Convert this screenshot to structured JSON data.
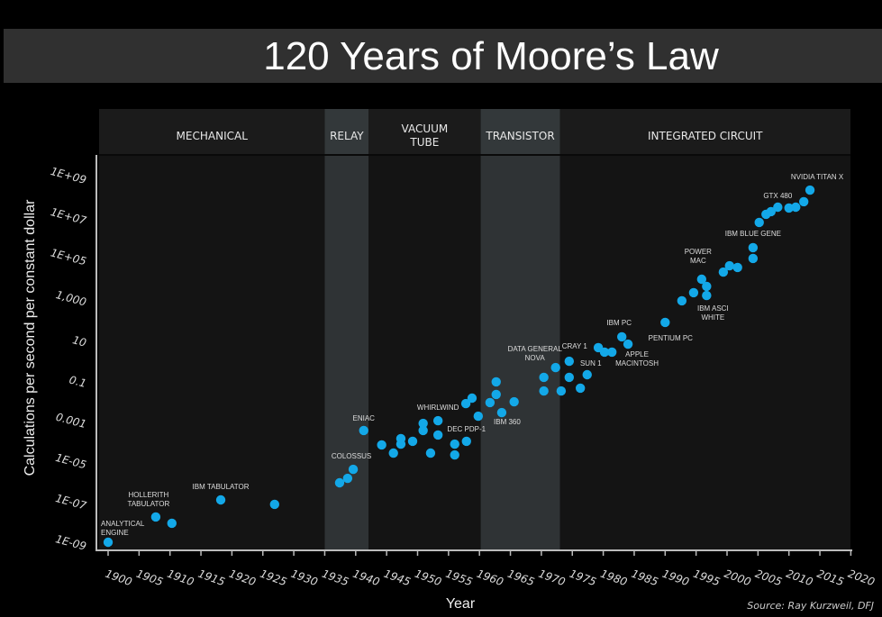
{
  "chart_data": {
    "type": "scatter",
    "title": "120 Years of Moore’s Law",
    "xlabel": "Year",
    "ylabel": "Calculations per second per constant dollar",
    "source": "Source: Ray Kurzweil, DFJ",
    "xlim": [
      1900,
      2020
    ],
    "ylim_log10": [
      -9,
      9
    ],
    "x_ticks": [
      "1900",
      "1905",
      "1910",
      "1915",
      "1920",
      "1925",
      "1930",
      "1935",
      "1940",
      "1945",
      "1950",
      "1955",
      "1960",
      "1965",
      "1970",
      "1975",
      "1980",
      "1985",
      "1990",
      "1995",
      "2000",
      "2005",
      "2010",
      "2015",
      "2020"
    ],
    "y_ticks": [
      {
        "label": "1E+09",
        "log10": 9
      },
      {
        "label": "1E+07",
        "log10": 7
      },
      {
        "label": "1E+05",
        "log10": 5
      },
      {
        "label": "1,000",
        "log10": 3
      },
      {
        "label": "10",
        "log10": 1
      },
      {
        "label": "0.1",
        "log10": -1
      },
      {
        "label": "0.001",
        "log10": -3
      },
      {
        "label": "1E-05",
        "log10": -5
      },
      {
        "label": "1E-07",
        "log10": -7
      },
      {
        "label": "1E-09",
        "log10": -9
      }
    ],
    "eras": [
      {
        "name": "MECHANICAL",
        "start": 1898.5,
        "end": 1935,
        "shaded": false
      },
      {
        "name": "RELAY",
        "start": 1935,
        "end": 1942.1,
        "shaded": true
      },
      {
        "name": "VACUUM TUBE",
        "start": 1942.1,
        "end": 1960.2,
        "shaded": false
      },
      {
        "name": "TRANSISTOR",
        "start": 1960.2,
        "end": 1973,
        "shaded": true
      },
      {
        "name": "INTEGRATED CIRCUIT",
        "start": 1973,
        "end": 2020,
        "shaded": false
      }
    ],
    "point_color": "#13a8e8",
    "points": [
      {
        "year": 1900,
        "log10": -9.0,
        "label": "ANALYTICAL ENGINE"
      },
      {
        "year": 1907.7,
        "log10": -7.76,
        "label": "HOLLERITH TABULATOR"
      },
      {
        "year": 1910.3,
        "log10": -8.07
      },
      {
        "year": 1918.2,
        "log10": -6.92,
        "label": "IBM TABULATOR"
      },
      {
        "year": 1926.9,
        "log10": -7.14
      },
      {
        "year": 1937.4,
        "log10": -6.08
      },
      {
        "year": 1938.7,
        "log10": -5.86
      },
      {
        "year": 1939.6,
        "log10": -5.42,
        "label": "COLOSSUS"
      },
      {
        "year": 1941.3,
        "log10": -3.51,
        "label": "ENIAC"
      },
      {
        "year": 1944.2,
        "log10": -4.22
      },
      {
        "year": 1946.1,
        "log10": -4.62
      },
      {
        "year": 1947.3,
        "log10": -3.91
      },
      {
        "year": 1947.3,
        "log10": -4.18
      },
      {
        "year": 1949.2,
        "log10": -4.04
      },
      {
        "year": 1950.9,
        "log10": -3.16
      },
      {
        "year": 1950.9,
        "log10": -3.51
      },
      {
        "year": 1952.1,
        "log10": -4.62
      },
      {
        "year": 1953.3,
        "log10": -3.03,
        "label": "WHIRLWIND"
      },
      {
        "year": 1953.3,
        "log10": -3.73
      },
      {
        "year": 1956.0,
        "log10": -4.18
      },
      {
        "year": 1956.0,
        "log10": -4.71
      },
      {
        "year": 1957.9,
        "log10": -4.04,
        "label": "DEC PDP-1"
      },
      {
        "year": 1957.8,
        "log10": -2.19
      },
      {
        "year": 1958.8,
        "log10": -1.92
      },
      {
        "year": 1959.8,
        "log10": -2.81
      },
      {
        "year": 1961.7,
        "log10": -2.14
      },
      {
        "year": 1962.7,
        "log10": -1.74
      },
      {
        "year": 1962.7,
        "log10": -1.12
      },
      {
        "year": 1963.6,
        "log10": -2.63,
        "label": "IBM 360"
      },
      {
        "year": 1965.6,
        "log10": -2.1
      },
      {
        "year": 1970.4,
        "log10": -0.9
      },
      {
        "year": 1970.4,
        "log10": -1.57
      },
      {
        "year": 1972.3,
        "log10": -0.42,
        "label": "DATA GENERAL NOVA"
      },
      {
        "year": 1973.2,
        "log10": -1.57
      },
      {
        "year": 1974.5,
        "log10": -0.11,
        "label": "CRAY 1"
      },
      {
        "year": 1974.5,
        "log10": -0.9
      },
      {
        "year": 1976.3,
        "log10": -1.43
      },
      {
        "year": 1977.4,
        "log10": -0.77,
        "label": "SUN 1"
      },
      {
        "year": 1979.2,
        "log10": 0.56
      },
      {
        "year": 1980.2,
        "log10": 0.34
      },
      {
        "year": 1981.4,
        "log10": 0.34
      },
      {
        "year": 1983.0,
        "log10": 1.09,
        "label": "IBM PC"
      },
      {
        "year": 1984.0,
        "log10": 0.73,
        "label": "APPLE MACINTOSH"
      },
      {
        "year": 1990.0,
        "log10": 1.8,
        "label": "PENTIUM PC"
      },
      {
        "year": 1992.7,
        "log10": 2.86
      },
      {
        "year": 1994.6,
        "log10": 3.26
      },
      {
        "year": 1995.9,
        "log10": 3.92,
        "label": "POWER MAC"
      },
      {
        "year": 1996.7,
        "log10": 3.57
      },
      {
        "year": 1996.7,
        "log10": 3.12,
        "label": "IBM ASCI WHITE"
      },
      {
        "year": 1999.4,
        "log10": 4.27
      },
      {
        "year": 2000.4,
        "log10": 4.58
      },
      {
        "year": 2001.7,
        "log10": 4.5
      },
      {
        "year": 2004.2,
        "log10": 4.94
      },
      {
        "year": 2004.2,
        "log10": 5.47,
        "label": "IBM BLUE GENE"
      },
      {
        "year": 2005.2,
        "log10": 6.71
      },
      {
        "year": 2006.3,
        "log10": 7.11
      },
      {
        "year": 2007.1,
        "log10": 7.24
      },
      {
        "year": 2008.2,
        "log10": 7.46,
        "label": "GTX 480"
      },
      {
        "year": 2010.0,
        "log10": 7.42
      },
      {
        "year": 2011.1,
        "log10": 7.46
      },
      {
        "year": 2012.4,
        "log10": 7.73
      },
      {
        "year": 2013.4,
        "log10": 8.3,
        "label": "NVIDIA TITAN X"
      }
    ]
  }
}
